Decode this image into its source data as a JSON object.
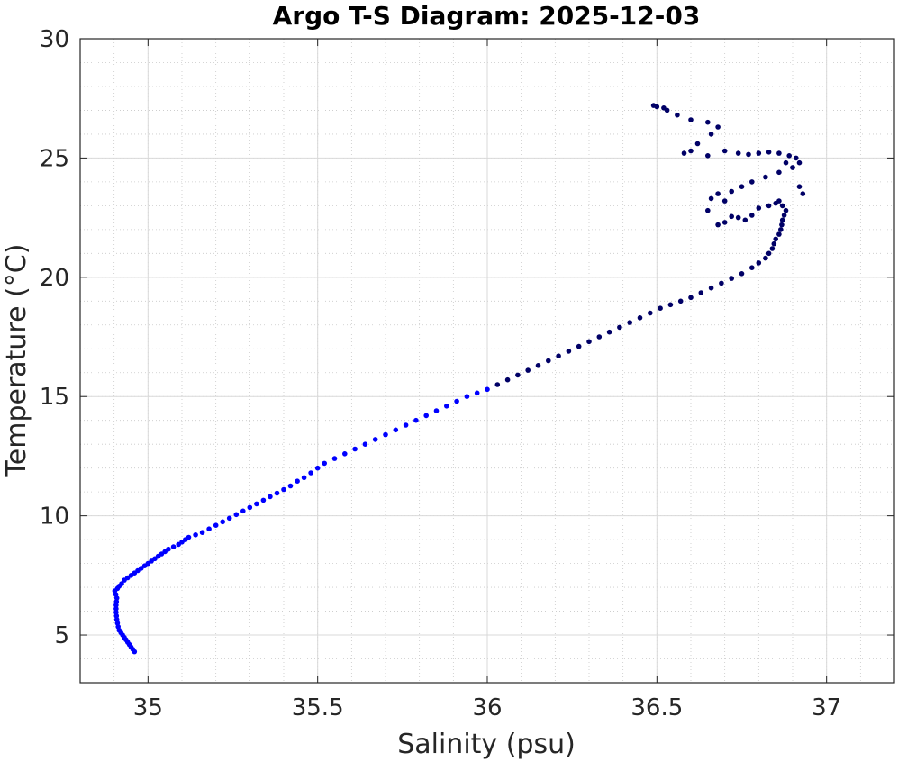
{
  "chart_data": {
    "type": "scatter",
    "title": "Argo T-S Diagram: 2025-12-03",
    "xlabel": "Salinity (psu)",
    "ylabel": "Temperature (°C)",
    "xlim": [
      34.8,
      37.2
    ],
    "ylim": [
      3,
      30
    ],
    "xticks": [
      35,
      35.5,
      36,
      36.5,
      37
    ],
    "xtick_labels": [
      "35",
      "35.5",
      "36",
      "36.5",
      "37"
    ],
    "yticks": [
      5,
      10,
      15,
      20,
      25,
      30
    ],
    "ytick_labels": [
      "5",
      "10",
      "15",
      "20",
      "25",
      "30"
    ],
    "grid": true,
    "minor_grid": true,
    "colors": {
      "deep": "#0000ff",
      "shallow": "#000066"
    },
    "points": [
      [
        34.96,
        4.3
      ],
      [
        34.955,
        4.4
      ],
      [
        34.95,
        4.5
      ],
      [
        34.945,
        4.6
      ],
      [
        34.94,
        4.7
      ],
      [
        34.935,
        4.8
      ],
      [
        34.93,
        4.9
      ],
      [
        34.925,
        5.0
      ],
      [
        34.92,
        5.1
      ],
      [
        34.915,
        5.2
      ],
      [
        34.912,
        5.35
      ],
      [
        34.91,
        5.5
      ],
      [
        34.908,
        5.65
      ],
      [
        34.907,
        5.8
      ],
      [
        34.906,
        5.95
      ],
      [
        34.906,
        6.1
      ],
      [
        34.906,
        6.25
      ],
      [
        34.907,
        6.4
      ],
      [
        34.908,
        6.55
      ],
      [
        34.905,
        6.7
      ],
      [
        34.902,
        6.85
      ],
      [
        34.91,
        6.95
      ],
      [
        34.915,
        7.05
      ],
      [
        34.922,
        7.15
      ],
      [
        34.93,
        7.3
      ],
      [
        34.94,
        7.4
      ],
      [
        34.95,
        7.5
      ],
      [
        34.96,
        7.6
      ],
      [
        34.97,
        7.7
      ],
      [
        34.98,
        7.8
      ],
      [
        34.99,
        7.9
      ],
      [
        35.0,
        8.0
      ],
      [
        35.01,
        8.1
      ],
      [
        35.02,
        8.2
      ],
      [
        35.03,
        8.3
      ],
      [
        35.04,
        8.4
      ],
      [
        35.05,
        8.5
      ],
      [
        35.06,
        8.6
      ],
      [
        35.075,
        8.7
      ],
      [
        35.09,
        8.8
      ],
      [
        35.1,
        8.9
      ],
      [
        35.11,
        9.0
      ],
      [
        35.12,
        9.1
      ],
      [
        35.14,
        9.2
      ],
      [
        35.16,
        9.3
      ],
      [
        35.18,
        9.45
      ],
      [
        35.2,
        9.6
      ],
      [
        35.22,
        9.75
      ],
      [
        35.24,
        9.9
      ],
      [
        35.26,
        10.05
      ],
      [
        35.28,
        10.2
      ],
      [
        35.3,
        10.35
      ],
      [
        35.32,
        10.5
      ],
      [
        35.34,
        10.65
      ],
      [
        35.36,
        10.8
      ],
      [
        35.38,
        10.95
      ],
      [
        35.4,
        11.1
      ],
      [
        35.42,
        11.25
      ],
      [
        35.44,
        11.45
      ],
      [
        35.46,
        11.6
      ],
      [
        35.48,
        11.8
      ],
      [
        35.5,
        12.0
      ],
      [
        35.52,
        12.2
      ],
      [
        35.55,
        12.4
      ],
      [
        35.58,
        12.6
      ],
      [
        35.61,
        12.8
      ],
      [
        35.64,
        13.0
      ],
      [
        35.67,
        13.2
      ],
      [
        35.7,
        13.4
      ],
      [
        35.73,
        13.6
      ],
      [
        35.76,
        13.8
      ],
      [
        35.79,
        14.0
      ],
      [
        35.82,
        14.2
      ],
      [
        35.85,
        14.4
      ],
      [
        35.88,
        14.6
      ],
      [
        35.91,
        14.8
      ],
      [
        35.94,
        15.0
      ],
      [
        35.97,
        15.15
      ],
      [
        36.0,
        15.3
      ],
      [
        36.03,
        15.5
      ],
      [
        36.06,
        15.7
      ],
      [
        36.09,
        15.9
      ],
      [
        36.12,
        16.1
      ],
      [
        36.15,
        16.3
      ],
      [
        36.18,
        16.5
      ],
      [
        36.21,
        16.7
      ],
      [
        36.24,
        16.9
      ],
      [
        36.27,
        17.1
      ],
      [
        36.3,
        17.3
      ],
      [
        36.33,
        17.5
      ],
      [
        36.36,
        17.7
      ],
      [
        36.39,
        17.9
      ],
      [
        36.42,
        18.1
      ],
      [
        36.45,
        18.3
      ],
      [
        36.48,
        18.5
      ],
      [
        36.51,
        18.7
      ],
      [
        36.54,
        18.85
      ],
      [
        36.57,
        19.0
      ],
      [
        36.6,
        19.15
      ],
      [
        36.63,
        19.35
      ],
      [
        36.66,
        19.55
      ],
      [
        36.69,
        19.75
      ],
      [
        36.72,
        19.95
      ],
      [
        36.75,
        20.15
      ],
      [
        36.78,
        20.4
      ],
      [
        36.8,
        20.6
      ],
      [
        36.82,
        20.8
      ],
      [
        36.83,
        21.0
      ],
      [
        36.84,
        21.2
      ],
      [
        36.845,
        21.4
      ],
      [
        36.85,
        21.6
      ],
      [
        36.86,
        21.8
      ],
      [
        36.865,
        22.0
      ],
      [
        36.868,
        22.2
      ],
      [
        36.87,
        22.4
      ],
      [
        36.875,
        22.6
      ],
      [
        36.88,
        22.8
      ],
      [
        36.87,
        23.0
      ],
      [
        36.86,
        23.2
      ],
      [
        36.85,
        23.1
      ],
      [
        36.83,
        23.0
      ],
      [
        36.8,
        22.9
      ],
      [
        36.78,
        22.6
      ],
      [
        36.76,
        22.4
      ],
      [
        36.74,
        22.5
      ],
      [
        36.72,
        22.55
      ],
      [
        36.7,
        22.3
      ],
      [
        36.68,
        22.2
      ],
      [
        36.65,
        22.8
      ],
      [
        36.66,
        23.3
      ],
      [
        36.68,
        23.5
      ],
      [
        36.7,
        23.2
      ],
      [
        36.72,
        23.6
      ],
      [
        36.75,
        23.8
      ],
      [
        36.78,
        24.0
      ],
      [
        36.82,
        24.2
      ],
      [
        36.86,
        24.4
      ],
      [
        36.9,
        24.6
      ],
      [
        36.92,
        24.8
      ],
      [
        36.91,
        25.0
      ],
      [
        36.89,
        25.1
      ],
      [
        36.86,
        25.2
      ],
      [
        36.83,
        25.25
      ],
      [
        36.8,
        25.2
      ],
      [
        36.77,
        25.15
      ],
      [
        36.74,
        25.2
      ],
      [
        36.7,
        25.3
      ],
      [
        36.65,
        25.1
      ],
      [
        36.6,
        25.3
      ],
      [
        36.58,
        25.2
      ],
      [
        36.62,
        25.6
      ],
      [
        36.66,
        26.0
      ],
      [
        36.68,
        26.3
      ],
      [
        36.65,
        26.5
      ],
      [
        36.6,
        26.6
      ],
      [
        36.56,
        26.8
      ],
      [
        36.53,
        27.0
      ],
      [
        36.52,
        27.1
      ],
      [
        36.5,
        27.15
      ],
      [
        36.49,
        27.2
      ],
      [
        36.93,
        23.5
      ],
      [
        36.92,
        23.8
      ],
      [
        36.9,
        24.6
      ],
      [
        36.88,
        24.8
      ]
    ]
  }
}
